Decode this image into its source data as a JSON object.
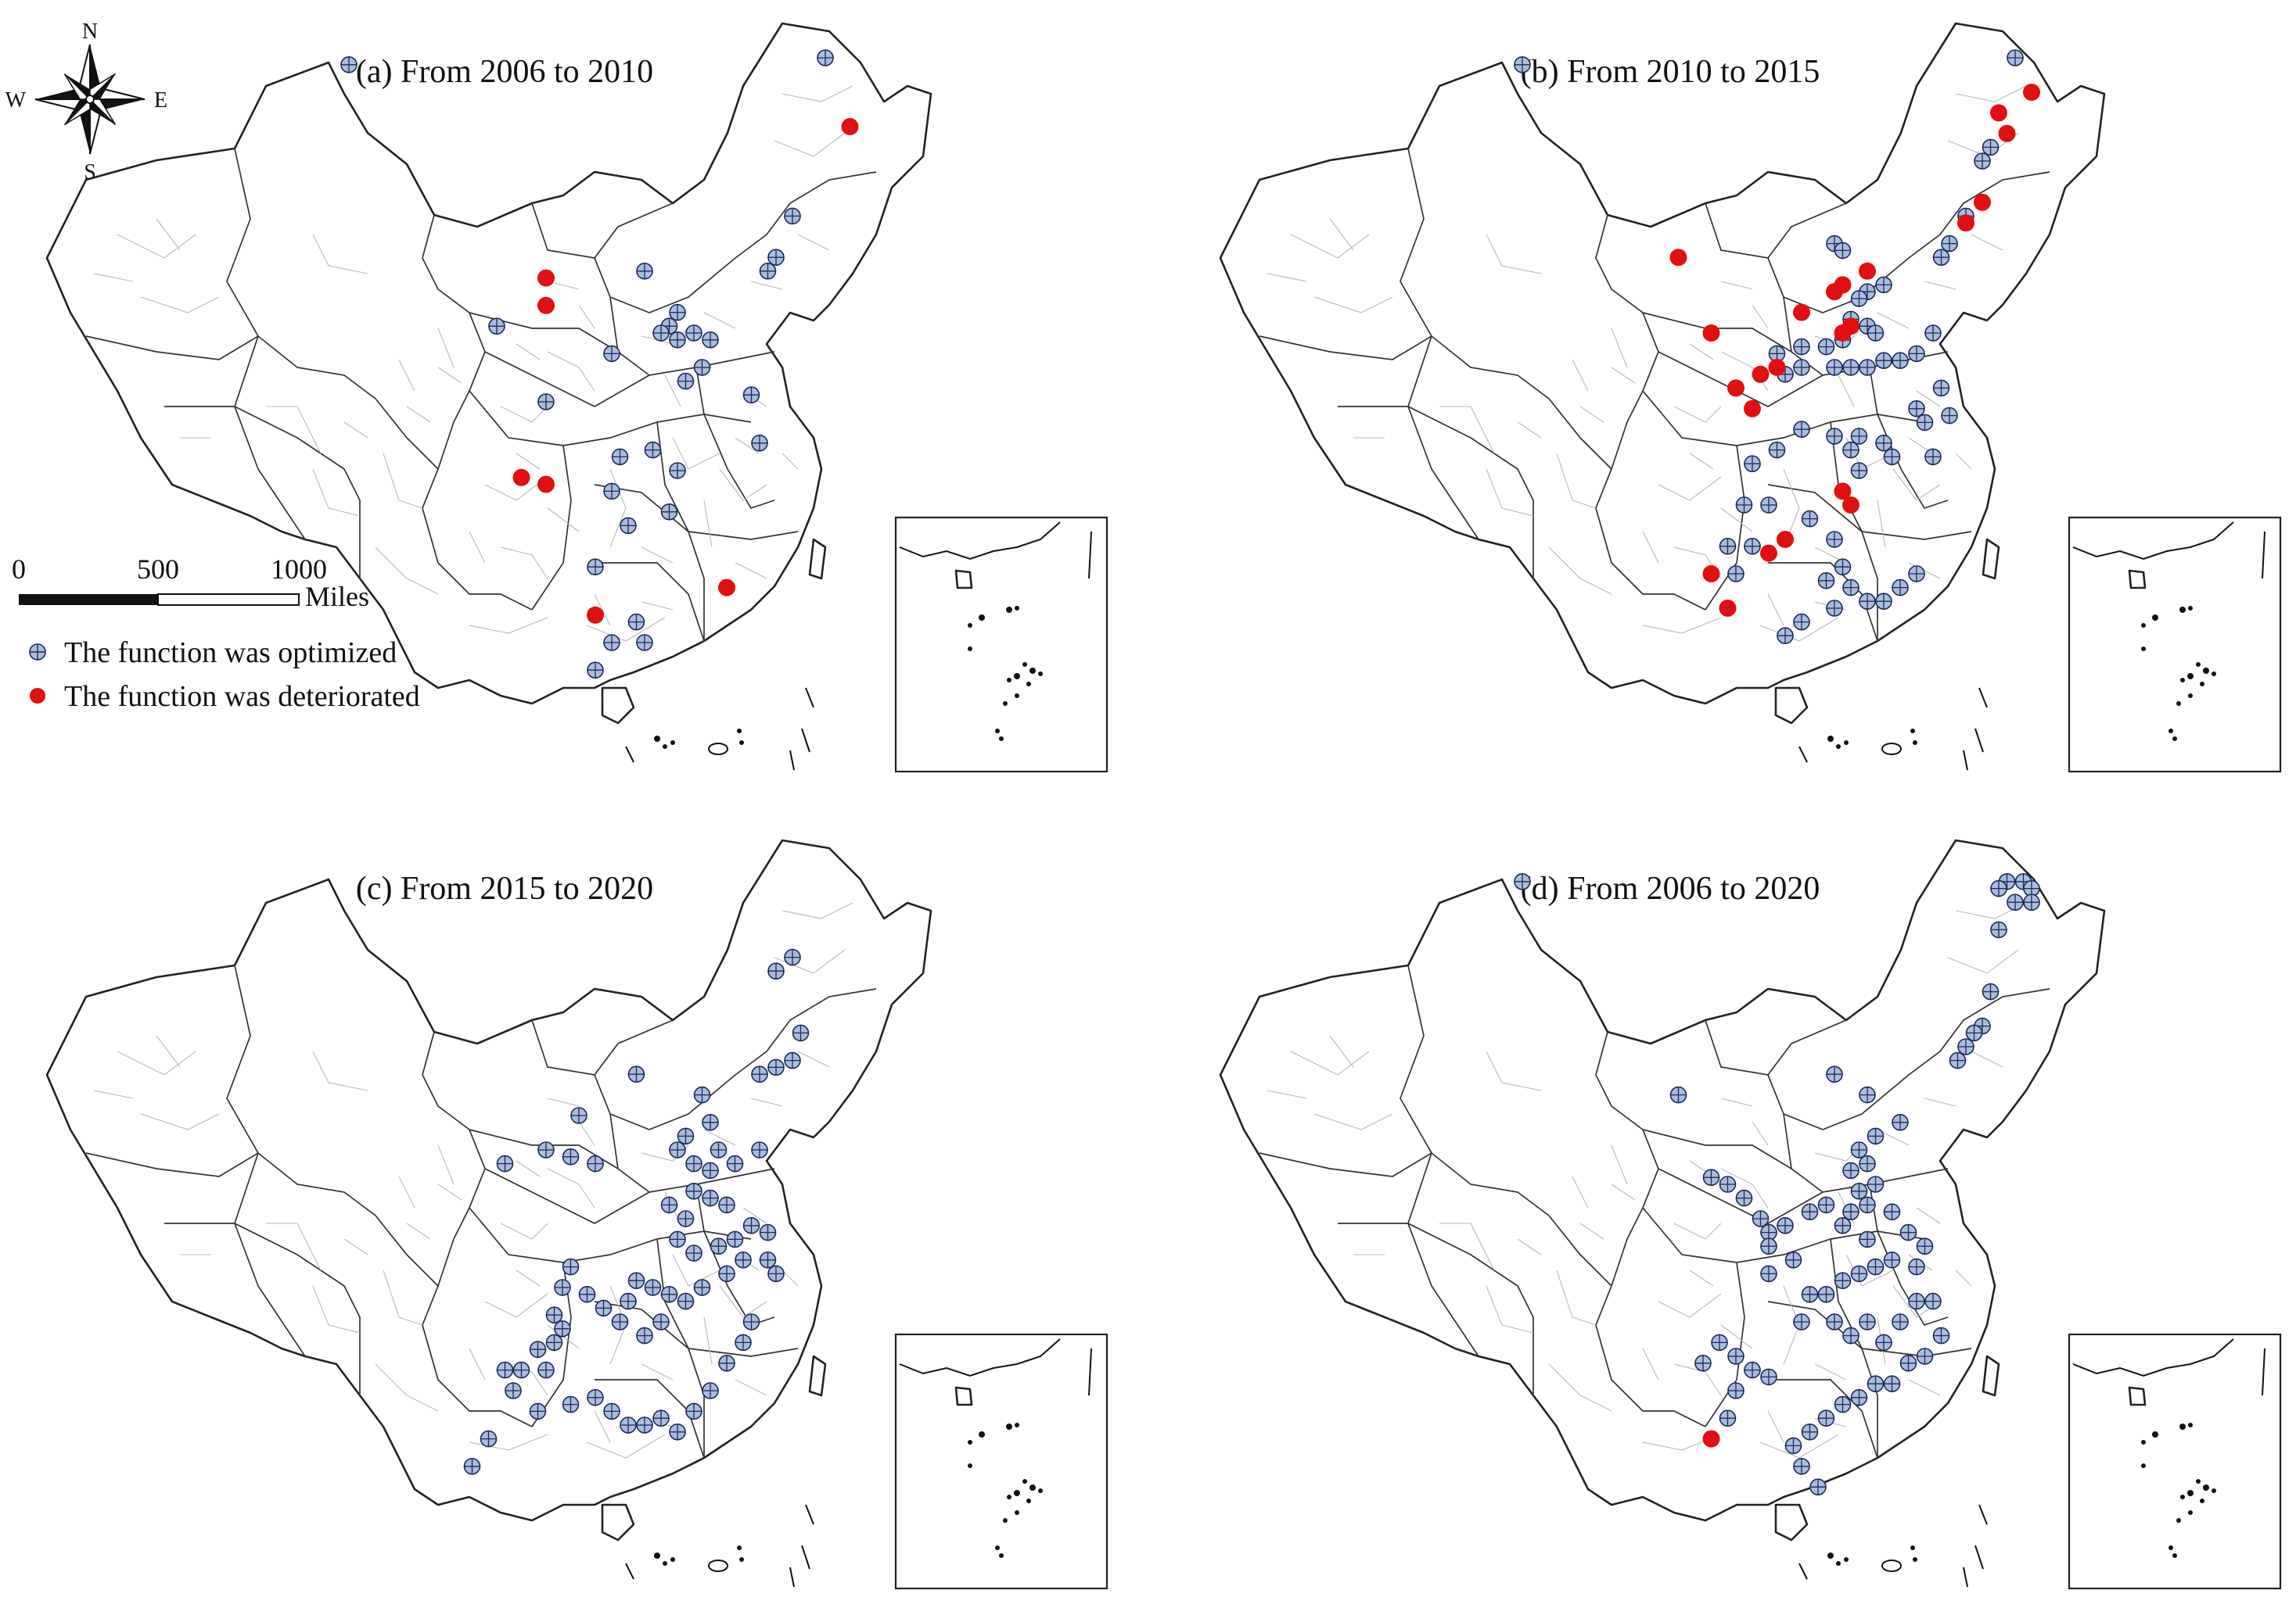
{
  "legend": {
    "optimized_label": "The function was optimized",
    "deteriorated_label": "The function was deteriorated",
    "optimized_color": "#a9bde0",
    "deteriorated_color": "#e01010"
  },
  "compass": {
    "north": "N",
    "south": "S",
    "east": "E",
    "west": "W"
  },
  "scale_bar": {
    "ticks": [
      "0",
      "500",
      "1000"
    ],
    "unit": "Miles"
  },
  "panels": [
    {
      "id": "a",
      "title": "(a)  From 2006 to 2010",
      "optimized": [
        [
          0.32,
          0.06
        ],
        [
          0.9,
          0.05
        ],
        [
          0.86,
          0.28
        ],
        [
          0.84,
          0.34
        ],
        [
          0.83,
          0.36
        ],
        [
          0.68,
          0.36
        ],
        [
          0.5,
          0.44
        ],
        [
          0.71,
          0.44
        ],
        [
          0.72,
          0.42
        ],
        [
          0.7,
          0.45
        ],
        [
          0.72,
          0.46
        ],
        [
          0.74,
          0.45
        ],
        [
          0.76,
          0.46
        ],
        [
          0.64,
          0.48
        ],
        [
          0.75,
          0.5
        ],
        [
          0.73,
          0.52
        ],
        [
          0.81,
          0.54
        ],
        [
          0.82,
          0.61
        ],
        [
          0.56,
          0.55
        ],
        [
          0.65,
          0.63
        ],
        [
          0.69,
          0.62
        ],
        [
          0.72,
          0.65
        ],
        [
          0.71,
          0.71
        ],
        [
          0.64,
          0.68
        ],
        [
          0.66,
          0.73
        ],
        [
          0.62,
          0.79
        ],
        [
          0.67,
          0.87
        ],
        [
          0.68,
          0.9
        ],
        [
          0.62,
          0.94
        ],
        [
          0.64,
          0.9
        ]
      ],
      "deteriorated": [
        [
          0.93,
          0.15
        ],
        [
          0.56,
          0.37
        ],
        [
          0.56,
          0.41
        ],
        [
          0.53,
          0.66
        ],
        [
          0.56,
          0.67
        ],
        [
          0.78,
          0.82
        ],
        [
          0.62,
          0.86
        ]
      ]
    },
    {
      "id": "b",
      "title": "(b)  From 2010 to 2015",
      "optimized": [
        [
          0.32,
          0.06
        ],
        [
          0.92,
          0.05
        ],
        [
          0.89,
          0.18
        ],
        [
          0.88,
          0.2
        ],
        [
          0.86,
          0.28
        ],
        [
          0.84,
          0.32
        ],
        [
          0.83,
          0.34
        ],
        [
          0.7,
          0.32
        ],
        [
          0.71,
          0.33
        ],
        [
          0.74,
          0.39
        ],
        [
          0.76,
          0.38
        ],
        [
          0.73,
          0.4
        ],
        [
          0.72,
          0.43
        ],
        [
          0.74,
          0.44
        ],
        [
          0.71,
          0.46
        ],
        [
          0.69,
          0.47
        ],
        [
          0.66,
          0.47
        ],
        [
          0.63,
          0.48
        ],
        [
          0.64,
          0.51
        ],
        [
          0.66,
          0.5
        ],
        [
          0.7,
          0.5
        ],
        [
          0.72,
          0.5
        ],
        [
          0.74,
          0.5
        ],
        [
          0.76,
          0.49
        ],
        [
          0.78,
          0.49
        ],
        [
          0.75,
          0.45
        ],
        [
          0.8,
          0.48
        ],
        [
          0.82,
          0.45
        ],
        [
          0.83,
          0.53
        ],
        [
          0.8,
          0.56
        ],
        [
          0.81,
          0.58
        ],
        [
          0.84,
          0.57
        ],
        [
          0.82,
          0.63
        ],
        [
          0.77,
          0.63
        ],
        [
          0.76,
          0.61
        ],
        [
          0.73,
          0.6
        ],
        [
          0.72,
          0.62
        ],
        [
          0.73,
          0.65
        ],
        [
          0.7,
          0.6
        ],
        [
          0.66,
          0.59
        ],
        [
          0.63,
          0.62
        ],
        [
          0.6,
          0.64
        ],
        [
          0.59,
          0.7
        ],
        [
          0.62,
          0.7
        ],
        [
          0.67,
          0.72
        ],
        [
          0.7,
          0.75
        ],
        [
          0.71,
          0.79
        ],
        [
          0.69,
          0.81
        ],
        [
          0.72,
          0.82
        ],
        [
          0.74,
          0.84
        ],
        [
          0.76,
          0.84
        ],
        [
          0.78,
          0.82
        ],
        [
          0.8,
          0.8
        ],
        [
          0.7,
          0.85
        ],
        [
          0.66,
          0.87
        ],
        [
          0.64,
          0.89
        ],
        [
          0.57,
          0.76
        ],
        [
          0.6,
          0.76
        ],
        [
          0.58,
          0.8
        ]
      ],
      "deteriorated": [
        [
          0.9,
          0.13
        ],
        [
          0.94,
          0.1
        ],
        [
          0.91,
          0.16
        ],
        [
          0.88,
          0.26
        ],
        [
          0.86,
          0.29
        ],
        [
          0.74,
          0.36
        ],
        [
          0.71,
          0.38
        ],
        [
          0.7,
          0.39
        ],
        [
          0.72,
          0.44
        ],
        [
          0.71,
          0.45
        ],
        [
          0.66,
          0.42
        ],
        [
          0.63,
          0.5
        ],
        [
          0.61,
          0.51
        ],
        [
          0.6,
          0.56
        ],
        [
          0.58,
          0.53
        ],
        [
          0.71,
          0.68
        ],
        [
          0.72,
          0.7
        ],
        [
          0.64,
          0.75
        ],
        [
          0.62,
          0.77
        ],
        [
          0.55,
          0.8
        ],
        [
          0.57,
          0.85
        ],
        [
          0.51,
          0.34
        ],
        [
          0.55,
          0.45
        ]
      ]
    },
    {
      "id": "c",
      "title": "(c)  From 2015 to 2020",
      "optimized": [
        [
          0.86,
          0.17
        ],
        [
          0.84,
          0.19
        ],
        [
          0.87,
          0.28
        ],
        [
          0.86,
          0.32
        ],
        [
          0.84,
          0.33
        ],
        [
          0.82,
          0.34
        ],
        [
          0.67,
          0.34
        ],
        [
          0.75,
          0.37
        ],
        [
          0.76,
          0.41
        ],
        [
          0.73,
          0.43
        ],
        [
          0.72,
          0.45
        ],
        [
          0.74,
          0.47
        ],
        [
          0.77,
          0.45
        ],
        [
          0.76,
          0.48
        ],
        [
          0.79,
          0.47
        ],
        [
          0.82,
          0.45
        ],
        [
          0.74,
          0.51
        ],
        [
          0.76,
          0.52
        ],
        [
          0.78,
          0.53
        ],
        [
          0.71,
          0.53
        ],
        [
          0.73,
          0.55
        ],
        [
          0.72,
          0.58
        ],
        [
          0.74,
          0.6
        ],
        [
          0.77,
          0.59
        ],
        [
          0.79,
          0.58
        ],
        [
          0.81,
          0.56
        ],
        [
          0.83,
          0.57
        ],
        [
          0.83,
          0.61
        ],
        [
          0.84,
          0.63
        ],
        [
          0.8,
          0.61
        ],
        [
          0.78,
          0.63
        ],
        [
          0.75,
          0.65
        ],
        [
          0.73,
          0.67
        ],
        [
          0.71,
          0.66
        ],
        [
          0.69,
          0.65
        ],
        [
          0.67,
          0.64
        ],
        [
          0.66,
          0.67
        ],
        [
          0.7,
          0.7
        ],
        [
          0.68,
          0.72
        ],
        [
          0.65,
          0.7
        ],
        [
          0.63,
          0.68
        ],
        [
          0.61,
          0.66
        ],
        [
          0.59,
          0.62
        ],
        [
          0.58,
          0.65
        ],
        [
          0.57,
          0.69
        ],
        [
          0.58,
          0.71
        ],
        [
          0.57,
          0.73
        ],
        [
          0.55,
          0.74
        ],
        [
          0.56,
          0.77
        ],
        [
          0.53,
          0.77
        ],
        [
          0.51,
          0.77
        ],
        [
          0.52,
          0.8
        ],
        [
          0.55,
          0.83
        ],
        [
          0.59,
          0.82
        ],
        [
          0.62,
          0.81
        ],
        [
          0.64,
          0.83
        ],
        [
          0.66,
          0.85
        ],
        [
          0.68,
          0.85
        ],
        [
          0.7,
          0.84
        ],
        [
          0.72,
          0.86
        ],
        [
          0.74,
          0.83
        ],
        [
          0.76,
          0.8
        ],
        [
          0.78,
          0.76
        ],
        [
          0.8,
          0.73
        ],
        [
          0.81,
          0.7
        ],
        [
          0.49,
          0.87
        ],
        [
          0.47,
          0.91
        ],
        [
          0.51,
          0.47
        ],
        [
          0.56,
          0.45
        ],
        [
          0.59,
          0.46
        ],
        [
          0.62,
          0.47
        ],
        [
          0.6,
          0.4
        ]
      ],
      "deteriorated": []
    },
    {
      "id": "d",
      "title": "(d)  From 2006 to 2020",
      "optimized": [
        [
          0.32,
          0.06
        ],
        [
          0.91,
          0.06
        ],
        [
          0.93,
          0.06
        ],
        [
          0.94,
          0.07
        ],
        [
          0.92,
          0.09
        ],
        [
          0.94,
          0.09
        ],
        [
          0.9,
          0.07
        ],
        [
          0.9,
          0.13
        ],
        [
          0.89,
          0.22
        ],
        [
          0.88,
          0.27
        ],
        [
          0.87,
          0.28
        ],
        [
          0.86,
          0.3
        ],
        [
          0.85,
          0.32
        ],
        [
          0.7,
          0.34
        ],
        [
          0.74,
          0.37
        ],
        [
          0.78,
          0.41
        ],
        [
          0.75,
          0.43
        ],
        [
          0.73,
          0.45
        ],
        [
          0.74,
          0.47
        ],
        [
          0.72,
          0.48
        ],
        [
          0.75,
          0.5
        ],
        [
          0.73,
          0.51
        ],
        [
          0.74,
          0.53
        ],
        [
          0.72,
          0.54
        ],
        [
          0.71,
          0.56
        ],
        [
          0.69,
          0.53
        ],
        [
          0.67,
          0.54
        ],
        [
          0.64,
          0.56
        ],
        [
          0.62,
          0.57
        ],
        [
          0.61,
          0.55
        ],
        [
          0.65,
          0.61
        ],
        [
          0.62,
          0.59
        ],
        [
          0.62,
          0.63
        ],
        [
          0.74,
          0.58
        ],
        [
          0.77,
          0.54
        ],
        [
          0.79,
          0.57
        ],
        [
          0.81,
          0.59
        ],
        [
          0.8,
          0.62
        ],
        [
          0.77,
          0.61
        ],
        [
          0.75,
          0.62
        ],
        [
          0.73,
          0.63
        ],
        [
          0.71,
          0.64
        ],
        [
          0.69,
          0.66
        ],
        [
          0.67,
          0.66
        ],
        [
          0.66,
          0.7
        ],
        [
          0.7,
          0.7
        ],
        [
          0.72,
          0.72
        ],
        [
          0.74,
          0.7
        ],
        [
          0.76,
          0.73
        ],
        [
          0.78,
          0.7
        ],
        [
          0.8,
          0.67
        ],
        [
          0.82,
          0.67
        ],
        [
          0.83,
          0.72
        ],
        [
          0.81,
          0.75
        ],
        [
          0.79,
          0.76
        ],
        [
          0.77,
          0.79
        ],
        [
          0.75,
          0.79
        ],
        [
          0.73,
          0.81
        ],
        [
          0.71,
          0.82
        ],
        [
          0.69,
          0.84
        ],
        [
          0.67,
          0.86
        ],
        [
          0.65,
          0.88
        ],
        [
          0.66,
          0.91
        ],
        [
          0.68,
          0.94
        ],
        [
          0.56,
          0.73
        ],
        [
          0.58,
          0.75
        ],
        [
          0.6,
          0.77
        ],
        [
          0.62,
          0.78
        ],
        [
          0.58,
          0.8
        ],
        [
          0.54,
          0.76
        ],
        [
          0.57,
          0.84
        ],
        [
          0.51,
          0.37
        ],
        [
          0.55,
          0.49
        ],
        [
          0.57,
          0.5
        ],
        [
          0.59,
          0.52
        ]
      ],
      "deteriorated": [
        [
          0.55,
          0.87
        ]
      ]
    }
  ]
}
